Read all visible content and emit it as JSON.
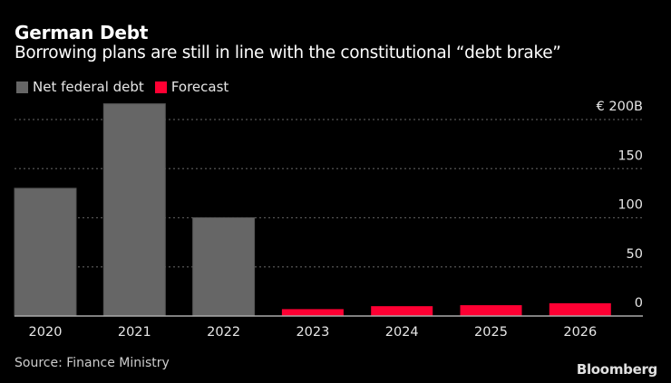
{
  "header": {
    "title": "German Debt",
    "subtitle": "Borrowing plans are still in line with the constitutional “debt brake”"
  },
  "footer": {
    "source": "Source: Finance Ministry",
    "brand": "Bloomberg"
  },
  "colors": {
    "background": "#000000",
    "actual": "#666666",
    "forecast": "#ff0033",
    "gridline": "#555555",
    "axis": "#aaaaaa",
    "text": "#ffffff"
  },
  "chart_data": {
    "type": "bar",
    "title": "German Debt",
    "subtitle": "Borrowing plans are still in line with the constitutional “debt brake”",
    "xlabel": "",
    "ylabel": "",
    "unit_label": "€ 200B",
    "categories": [
      "2020",
      "2021",
      "2022",
      "2023",
      "2024",
      "2025",
      "2026"
    ],
    "series": [
      {
        "name": "Net federal debt",
        "color": "#666666",
        "values": [
          130,
          216,
          100,
          null,
          null,
          null,
          null
        ]
      },
      {
        "name": "Forecast",
        "color": "#ff0033",
        "values": [
          null,
          null,
          null,
          7,
          10,
          11,
          13
        ]
      }
    ],
    "ylim": [
      0,
      200
    ],
    "yticks": [
      0,
      50,
      100,
      150,
      200
    ],
    "ytick_labels": [
      "0",
      "50",
      "100",
      "150",
      "€ 200B"
    ],
    "y_axis_side": "right",
    "grid": true,
    "grid_style": "dotted",
    "legend_position": "top-left"
  }
}
